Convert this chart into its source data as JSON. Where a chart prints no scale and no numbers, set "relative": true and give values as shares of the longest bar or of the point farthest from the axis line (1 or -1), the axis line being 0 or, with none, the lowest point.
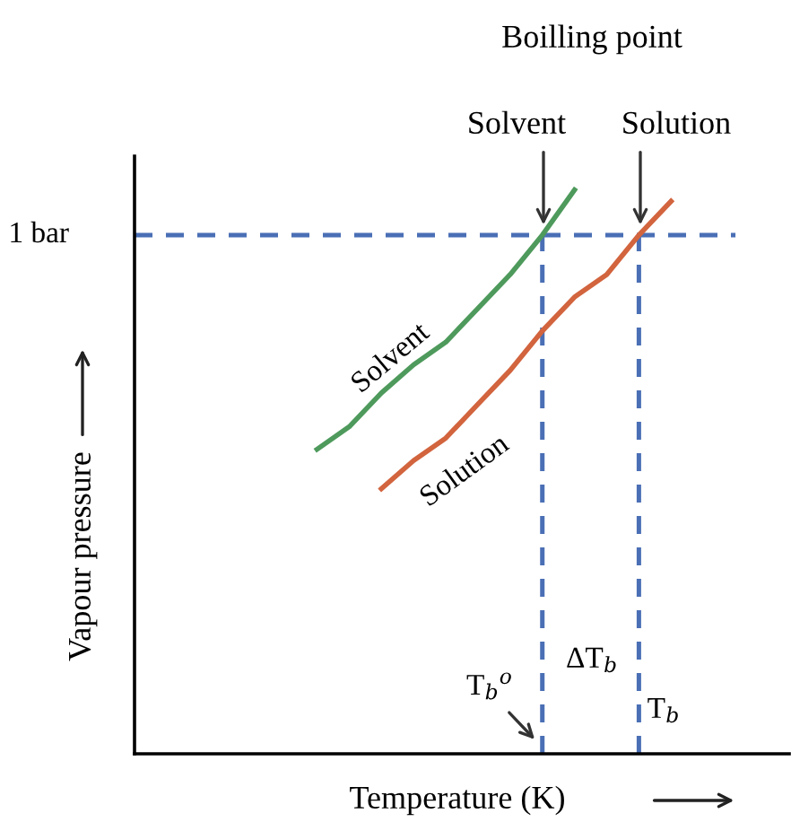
{
  "chart_data": {
    "type": "line",
    "relative": true,
    "xlabel": "Temperature (K)",
    "ylabel": "Vapour pressure",
    "categories": [
      null,
      null,
      null,
      null,
      null,
      null,
      null,
      null,
      null,
      null,
      null,
      null,
      null,
      null,
      null,
      null,
      null,
      null,
      null,
      null
    ],
    "series": [
      {
        "name": "Solvent",
        "color": "#4e9a5c",
        "values": [
          null,
          null,
          null,
          null,
          null,
          0.54,
          0.58,
          0.64,
          0.69,
          0.73,
          0.79,
          0.85,
          0.92,
          1.0,
          null,
          null,
          null,
          null,
          null,
          null
        ]
      },
      {
        "name": "Solution",
        "color": "#d2643e",
        "values": [
          null,
          null,
          null,
          null,
          null,
          null,
          null,
          0.47,
          0.52,
          0.56,
          0.62,
          0.68,
          0.75,
          0.81,
          0.85,
          0.92,
          0.98,
          null,
          null,
          null
        ]
      }
    ],
    "ref_lines": [
      {
        "axis": "y",
        "value": 0.92,
        "label": "1 bar",
        "color": "#4a6fb5",
        "line_style": "dashed"
      }
    ],
    "annotations": [
      "Boilling point",
      "Solvent",
      "Solution",
      "ΔT$_{b}$",
      "T$_{b}$$^{o}$",
      "T$_{b}$"
    ],
    "legend": false,
    "grid": false,
    "marker": "none",
    "line_style": "solid"
  }
}
